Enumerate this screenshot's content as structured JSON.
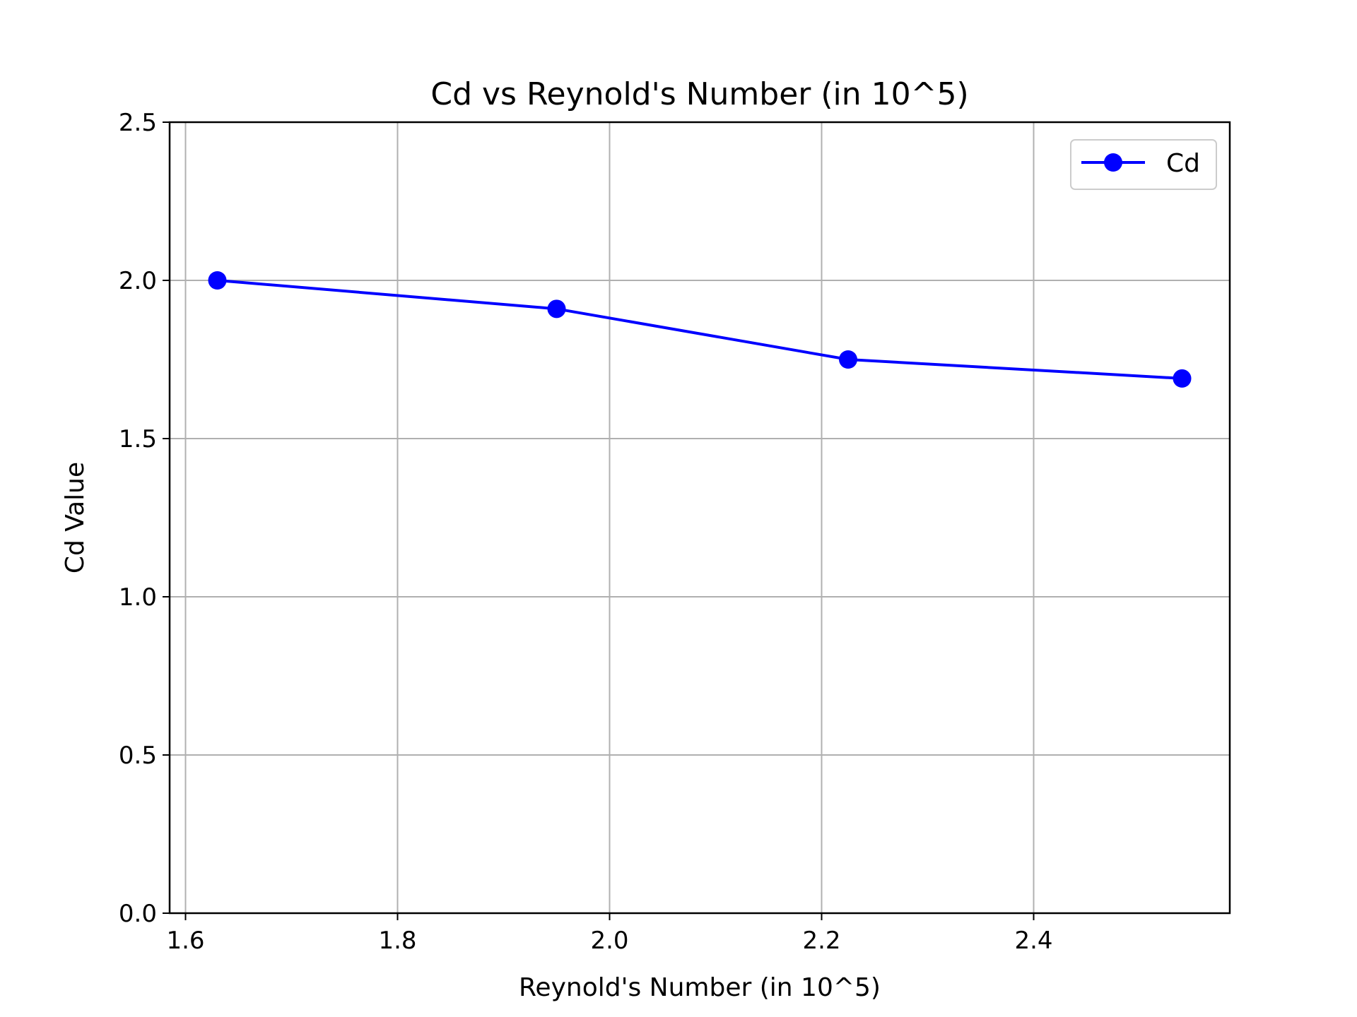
{
  "chart_data": {
    "type": "line",
    "title": "Cd vs Reynold's Number (in 10^5)",
    "xlabel": "Reynold's Number (in 10^5)",
    "ylabel": "Cd Value",
    "xlim": [
      1.585,
      2.585
    ],
    "ylim": [
      0,
      2.5
    ],
    "xticks": [
      1.6,
      1.8,
      2.0,
      2.2,
      2.4
    ],
    "xtick_labels": [
      "1.6",
      "1.8",
      "2.0",
      "2.2",
      "2.4"
    ],
    "yticks": [
      0.0,
      0.5,
      1.0,
      1.5,
      2.0,
      2.5
    ],
    "ytick_labels": [
      "0.0",
      "0.5",
      "1.0",
      "1.5",
      "2.0",
      "2.5"
    ],
    "grid": true,
    "legend_position": "top-right",
    "series": [
      {
        "name": "Cd",
        "color": "#0000ff",
        "marker": "circle",
        "x": [
          1.63,
          1.95,
          2.225,
          2.54
        ],
        "y": [
          2.0,
          1.91,
          1.75,
          1.69
        ]
      }
    ]
  }
}
